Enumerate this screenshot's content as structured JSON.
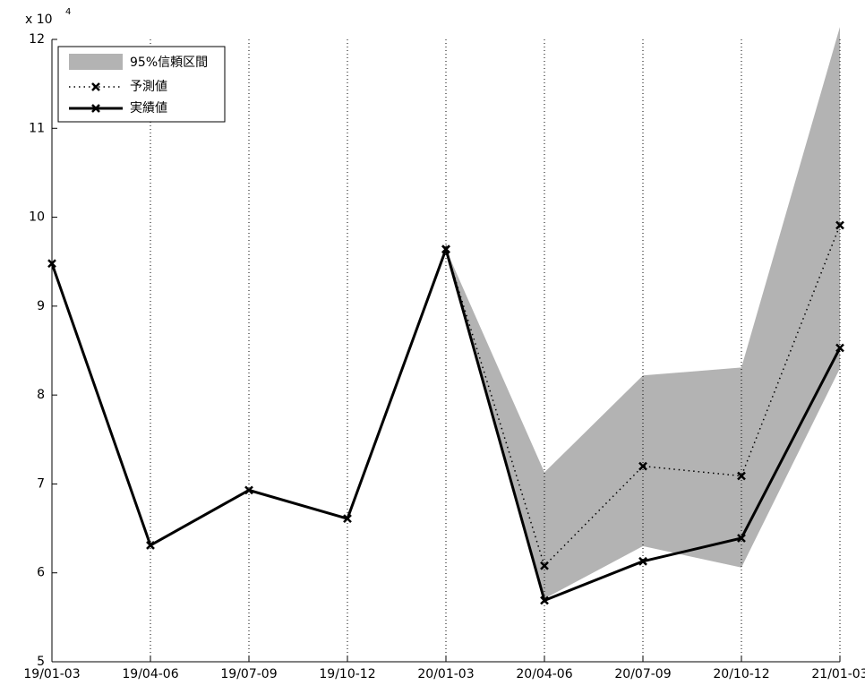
{
  "chart_data": {
    "type": "line",
    "axis_multiplier": "x 10",
    "axis_multiplier_exponent": "4",
    "categories": [
      "19/01-03",
      "19/04-06",
      "19/07-09",
      "19/10-12",
      "20/01-03",
      "20/04-06",
      "20/07-09",
      "20/10-12",
      "21/01-03"
    ],
    "band": {
      "name": "95%信頼区間",
      "color": "#b3b3b3",
      "lower": [
        null,
        null,
        null,
        null,
        9.64,
        5.71,
        6.3,
        6.06,
        8.3
      ],
      "upper": [
        null,
        null,
        null,
        null,
        9.64,
        7.13,
        8.22,
        8.31,
        12.14
      ]
    },
    "series": [
      {
        "name": "予測値",
        "color": "#000000",
        "dash": "dotted",
        "values": [
          null,
          null,
          null,
          null,
          9.64,
          6.08,
          7.2,
          7.09,
          9.91
        ]
      },
      {
        "name": "実績値",
        "color": "#000000",
        "dash": "solid",
        "values": [
          9.48,
          6.31,
          6.93,
          6.61,
          9.64,
          5.69,
          6.13,
          6.39,
          8.53
        ]
      }
    ],
    "ylim": [
      5,
      12
    ],
    "yticks": [
      5,
      6,
      7,
      8,
      9,
      10,
      11,
      12
    ],
    "grid": true,
    "legend": "upper-left"
  }
}
